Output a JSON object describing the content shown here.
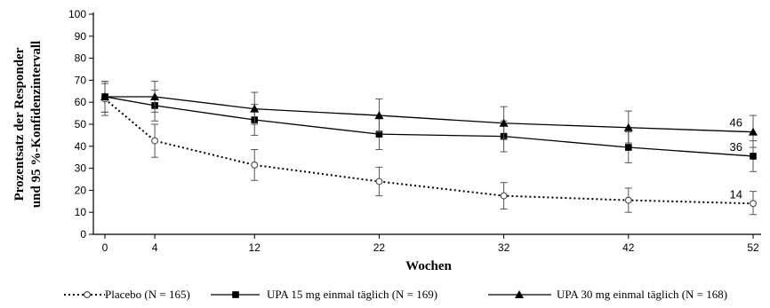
{
  "chart_data": {
    "type": "line",
    "xlabel": "Wochen",
    "ylabel": [
      "Prozentsatz der Responder",
      "und 95 %-Konfidenzintervall"
    ],
    "x": [
      0,
      4,
      12,
      22,
      32,
      42,
      52
    ],
    "x_tick_labels": [
      "0",
      "4",
      "12",
      "22",
      "32",
      "42",
      "52"
    ],
    "ylim": [
      0,
      100
    ],
    "y_ticks": [
      0,
      10,
      20,
      30,
      40,
      50,
      60,
      70,
      80,
      90,
      100
    ],
    "grid": false,
    "legend_position": "bottom",
    "series": [
      {
        "name": "Placebo (N = 165)",
        "marker": "open-circle",
        "line_style": "dotted",
        "color": "#000000",
        "values": [
          61.5,
          42.5,
          31.5,
          24,
          17.5,
          15.5,
          14
        ],
        "ci_low": [
          54,
          35,
          24.5,
          17.5,
          11.5,
          10,
          9
        ],
        "ci_high": [
          68.5,
          50,
          38.5,
          30.5,
          23.5,
          21,
          19.5
        ],
        "end_label": "14"
      },
      {
        "name": "UPA 15 mg einmal täglich (N = 169)",
        "marker": "square",
        "line_style": "solid",
        "color": "#000000",
        "values": [
          62.5,
          58.5,
          52,
          45.5,
          44.5,
          39.5,
          35.5
        ],
        "ci_low": [
          55.5,
          51.5,
          45,
          38.5,
          37.5,
          32.5,
          28.5
        ],
        "ci_high": [
          69.5,
          65.5,
          59,
          52.5,
          51.5,
          46.5,
          42.5
        ],
        "end_label": "36"
      },
      {
        "name": "UPA 30 mg einmal täglich (N = 168)",
        "marker": "triangle",
        "line_style": "solid",
        "color": "#000000",
        "values": [
          62.5,
          62.5,
          57,
          54,
          50.5,
          48.5,
          46.5
        ],
        "ci_low": [
          55.5,
          55.5,
          50,
          46.5,
          43.5,
          41.5,
          39.5
        ],
        "ci_high": [
          69.5,
          69.5,
          64.5,
          61.5,
          58,
          56,
          54
        ],
        "end_label": "46"
      }
    ]
  }
}
